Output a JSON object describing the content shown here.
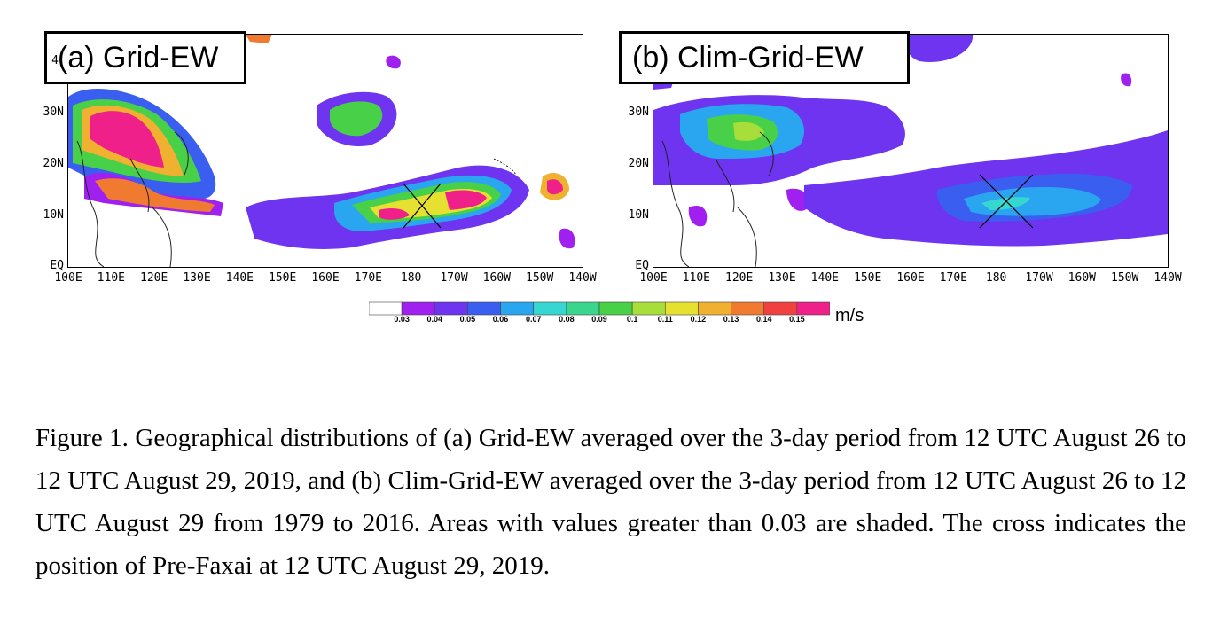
{
  "panels": {
    "a": {
      "label": "(a) Grid-EW"
    },
    "b": {
      "label": "(b) Clim-Grid-EW"
    }
  },
  "y_axis": {
    "ticks": [
      "4",
      "30N",
      "20N",
      "10N",
      "EQ"
    ]
  },
  "x_axis": {
    "ticks": [
      "100E",
      "110E",
      "120E",
      "130E",
      "140E",
      "150E",
      "160E",
      "170E",
      "180",
      "170W",
      "160W",
      "150W",
      "140W"
    ]
  },
  "colorbar": {
    "levels": [
      "0.03",
      "0.04",
      "0.05",
      "0.06",
      "0.07",
      "0.08",
      "0.09",
      "0.1",
      "0.11",
      "0.12",
      "0.13",
      "0.14",
      "0.15"
    ],
    "colors": [
      "#ffffff",
      "#a020f0",
      "#6e34f0",
      "#3a5ff0",
      "#2aa6f0",
      "#36d7d0",
      "#3ad68e",
      "#48d048",
      "#a8de3a",
      "#e6e030",
      "#f0b030",
      "#f07a30",
      "#f04040",
      "#f0208a"
    ],
    "units": "m/s"
  },
  "markers": {
    "cross_lon": 180,
    "cross_lat": 12
  },
  "caption": "Figure 1. Geographical distributions of (a) Grid-EW averaged over the 3-day period from 12 UTC August 26 to 12 UTC August 29, 2019, and (b) Clim-Grid-EW averaged over the 3-day period from 12 UTC August 26 to 12 UTC August 29 from 1979 to 2016. Areas with values greater than 0.03 are shaded. The cross indicates the position of Pre-Faxai at 12 UTC August 29, 2019."
}
